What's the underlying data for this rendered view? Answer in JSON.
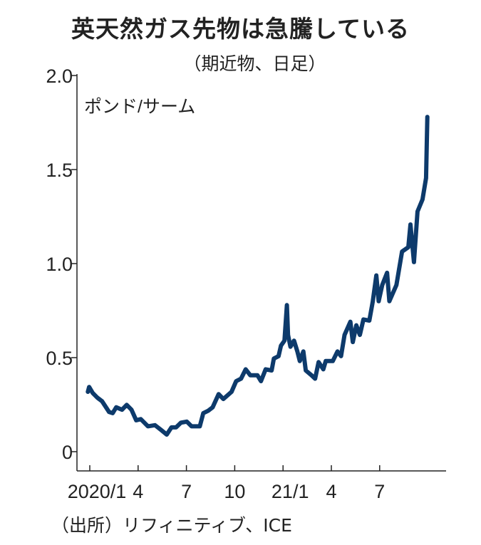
{
  "chart_data": {
    "type": "line",
    "title": "英天然ガス先物は急騰している",
    "subtitle": "（期近物、日足）",
    "ylabel": "ポンド/サーム",
    "xlabel": "",
    "source": "（出所）リフィニティブ、ICE",
    "ylim": [
      0,
      2.0
    ],
    "yticks": [
      {
        "v": 0,
        "label": "0"
      },
      {
        "v": 0.5,
        "label": "0.5"
      },
      {
        "v": 1.0,
        "label": "1.0"
      },
      {
        "v": 1.5,
        "label": "1.5"
      },
      {
        "v": 2.0,
        "label": "2.0"
      }
    ],
    "x_unit": "months since 2020/1",
    "xlim": [
      -0.5,
      22
    ],
    "xticks": [
      {
        "v": 0,
        "label": "2020/1"
      },
      {
        "v": 3,
        "label": "4"
      },
      {
        "v": 6,
        "label": "7"
      },
      {
        "v": 9,
        "label": "10"
      },
      {
        "v": 12,
        "label": "21/1"
      },
      {
        "v": 15,
        "label": "4"
      },
      {
        "v": 18,
        "label": "7"
      }
    ],
    "grid": false,
    "color": "#0d3a6b",
    "series": [
      {
        "name": "英天然ガス先物",
        "x": [
          -0.12,
          -0.04,
          0.18,
          0.47,
          0.76,
          1.2,
          1.42,
          1.64,
          2.0,
          2.29,
          2.59,
          2.88,
          3.17,
          3.61,
          4.05,
          4.42,
          4.78,
          5.07,
          5.36,
          5.66,
          6.02,
          6.32,
          6.83,
          7.05,
          7.34,
          7.63,
          8.0,
          8.29,
          8.8,
          9.09,
          9.39,
          9.68,
          9.97,
          10.41,
          10.63,
          10.92,
          11.29,
          11.43,
          11.72,
          11.87,
          12.09,
          12.24,
          12.31,
          12.46,
          12.68,
          12.89,
          13.04,
          13.26,
          13.41,
          13.77,
          13.99,
          14.21,
          14.5,
          14.65,
          15.09,
          15.38,
          15.6,
          15.82,
          16.18,
          16.33,
          16.55,
          16.77,
          16.99,
          17.36,
          17.57,
          17.79,
          17.94,
          18.16,
          18.46,
          18.6,
          19.04,
          19.39,
          19.78,
          19.91,
          20.13,
          20.35,
          20.66,
          20.88,
          20.92,
          20.96
        ],
        "y": [
          0.318,
          0.344,
          0.312,
          0.287,
          0.268,
          0.211,
          0.205,
          0.236,
          0.223,
          0.249,
          0.223,
          0.167,
          0.173,
          0.135,
          0.141,
          0.116,
          0.091,
          0.129,
          0.129,
          0.154,
          0.16,
          0.135,
          0.135,
          0.205,
          0.217,
          0.236,
          0.306,
          0.28,
          0.318,
          0.375,
          0.388,
          0.438,
          0.406,
          0.406,
          0.375,
          0.438,
          0.432,
          0.495,
          0.508,
          0.564,
          0.59,
          0.779,
          0.621,
          0.558,
          0.59,
          0.533,
          0.482,
          0.533,
          0.432,
          0.406,
          0.388,
          0.476,
          0.438,
          0.482,
          0.482,
          0.533,
          0.508,
          0.621,
          0.691,
          0.583,
          0.672,
          0.621,
          0.703,
          0.697,
          0.798,
          0.937,
          0.8,
          0.886,
          0.951,
          0.8,
          0.886,
          1.064,
          1.087,
          1.208,
          1.008,
          1.277,
          1.341,
          1.455,
          1.617,
          1.78
        ]
      }
    ]
  }
}
